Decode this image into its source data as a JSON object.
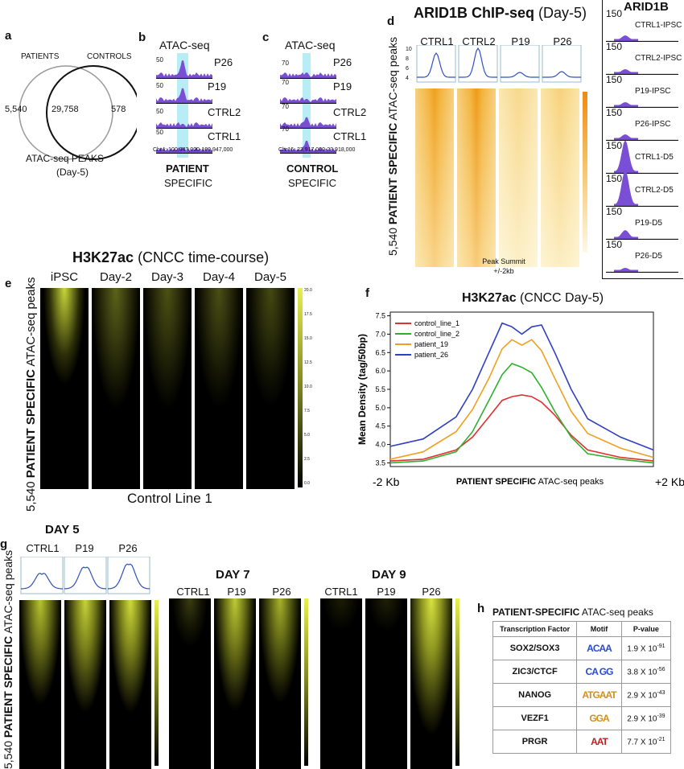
{
  "panels": {
    "a": "a",
    "b": "b",
    "c": "c",
    "d": "d",
    "e": "e",
    "f": "f",
    "g": "g",
    "h": "h"
  },
  "panel_a": {
    "left_label": "PATIENTS",
    "right_label": "CONTROLS",
    "left_only": "5,540",
    "overlap": "29,758",
    "right_only": "578",
    "caption_line1": "ATAC-seq PEAKS",
    "caption_line2": "(Day-5)"
  },
  "panel_b": {
    "title": "ATAC-seq",
    "tracks": [
      {
        "scale": "50",
        "name": "P26"
      },
      {
        "scale": "50",
        "name": "P19"
      },
      {
        "scale": "50",
        "name": "CTRL2"
      },
      {
        "scale": "50",
        "name": "CTRL1"
      }
    ],
    "coords": "Chr4: 100,943,000-100,947,000",
    "footer_bold": "PATIENT",
    "footer": "SPECIFIC"
  },
  "panel_c": {
    "title": "ATAC-seq",
    "tracks": [
      {
        "scale": "70",
        "name": "P26"
      },
      {
        "scale": "70",
        "name": "P19"
      },
      {
        "scale": "70",
        "name": "CTRL2"
      },
      {
        "scale": "70",
        "name": "CTRL1"
      }
    ],
    "coords": "Chr16: 23,917,000-23,918,000",
    "footer_bold": "CONTROL",
    "footer": "SPECIFIC"
  },
  "panel_d": {
    "title_bold": "ARID1B ChIP-seq",
    "title_rest": " (Day-5)",
    "columns": [
      "CTRL1",
      "CTRL2",
      "P19",
      "P26"
    ],
    "profile_ticks": [
      "10",
      "8",
      "6",
      "4"
    ],
    "ylabel_count": "5,540",
    "ylabel_bold": "PATIENT SPECIFIC",
    "ylabel_rest": " ATAC-seq peaks",
    "xlabel1": "Peak Summit",
    "xlabel2": "+/-2kb"
  },
  "panel_arid1b": {
    "title": "ARID1B",
    "tracks": [
      {
        "scale": "150",
        "name": "CTRL1-IPSC"
      },
      {
        "scale": "150",
        "name": "CTRL2-IPSC"
      },
      {
        "scale": "150",
        "name": "P19-IPSC"
      },
      {
        "scale": "150",
        "name": "P26-IPSC"
      },
      {
        "scale": "150",
        "name": "CTRL1-D5"
      },
      {
        "scale": "150",
        "name": "CTRL2-D5"
      },
      {
        "scale": "150",
        "name": "P19-D5"
      },
      {
        "scale": "150",
        "name": "P26-D5"
      }
    ]
  },
  "panel_e": {
    "title_bold": "H3K27ac",
    "title_rest": " (CNCC time-course)",
    "columns": [
      "iPSC",
      "Day-2",
      "Day-3",
      "Day-4",
      "Day-5"
    ],
    "ylabel_count": "5,540",
    "ylabel_bold": "PATIENT SPECIFIC",
    "ylabel_rest": " ATAC-seq peaks",
    "xlabel": "Control Line 1",
    "colorbar_ticks": [
      "20.0",
      "17.5",
      "15.0",
      "12.5",
      "10.0",
      "7.5",
      "5.0",
      "2.5",
      "0.0"
    ]
  },
  "chart_data": {
    "type": "line",
    "title": "H3K27ac (CNCC Day-5)",
    "title_bold": "H3K27ac",
    "title_rest": " (CNCC Day-5)",
    "ylabel": "Mean Density (tag/50bp)",
    "xlabel_bold": "PATIENT SPECIFIC",
    "xlabel_rest": " ATAC-seq peaks",
    "x_left": "-2 Kb",
    "x_right": "+2 Kb",
    "ylim": [
      3.4,
      7.6
    ],
    "yticks": [
      "3.5",
      "4.0",
      "4.5",
      "5.0",
      "5.5",
      "6.0",
      "6.5",
      "7.0",
      "7.5"
    ],
    "grid": false,
    "legend_position": "top-left",
    "x": [
      -2.0,
      -1.5,
      -1.0,
      -0.75,
      -0.5,
      -0.3,
      -0.15,
      0.0,
      0.15,
      0.3,
      0.5,
      0.75,
      1.0,
      1.5,
      2.0
    ],
    "series": [
      {
        "name": "control_line_1",
        "color": "#e03030",
        "values": [
          3.55,
          3.6,
          3.85,
          4.2,
          4.75,
          5.2,
          5.3,
          5.35,
          5.3,
          5.15,
          4.8,
          4.25,
          3.85,
          3.65,
          3.55
        ]
      },
      {
        "name": "control_line_2",
        "color": "#30b030",
        "values": [
          3.5,
          3.55,
          3.8,
          4.35,
          5.2,
          5.9,
          6.2,
          6.1,
          5.95,
          5.55,
          4.9,
          4.2,
          3.75,
          3.6,
          3.5
        ]
      },
      {
        "name": "patient_19",
        "color": "#f0a020",
        "values": [
          3.6,
          3.8,
          4.35,
          4.95,
          5.8,
          6.6,
          6.85,
          6.7,
          6.85,
          6.55,
          5.8,
          4.9,
          4.3,
          3.9,
          3.65
        ]
      },
      {
        "name": "patient_26",
        "color": "#3040c0",
        "values": [
          3.95,
          4.15,
          4.75,
          5.5,
          6.5,
          7.3,
          7.2,
          7.0,
          7.2,
          7.25,
          6.5,
          5.5,
          4.7,
          4.2,
          3.85
        ]
      }
    ]
  },
  "panel_g": {
    "day5_title": "DAY 5",
    "day7_title": "DAY 7",
    "day9_title": "DAY 9",
    "columns": [
      "CTRL1",
      "P19",
      "P26"
    ],
    "ylabel_count": "5,540",
    "ylabel_bold": "PATIENT SPECIFIC",
    "ylabel_rest": " ATAC-seq peaks"
  },
  "panel_h": {
    "title_bold": "PATIENT-SPECIFIC",
    "title_rest": " ATAC-seq peaks",
    "headers": [
      "Transcription Factor",
      "Motif",
      "P-value"
    ],
    "rows": [
      {
        "tf": "SOX2/SOX3",
        "motif": "ACAA",
        "pval": "1.9 X 10",
        "exp": "-91"
      },
      {
        "tf": "ZIC3/CTCF",
        "motif": "CA GG",
        "pval": "3.8 X 10",
        "exp": "-56"
      },
      {
        "tf": "NANOG",
        "motif": "ATGAAT",
        "pval": "2.9 X 10",
        "exp": "-43"
      },
      {
        "tf": "VEZF1",
        "motif": "GGA",
        "pval": "2.9 X 10",
        "exp": "-39"
      },
      {
        "tf": "PRGR",
        "motif": "AAT",
        "pval": "7.7 X 10",
        "exp": "-21"
      }
    ]
  },
  "colors": {
    "track_fill": "#7a4fd6",
    "highlight": "#a8e8f2",
    "heat_orange": "#f2a020",
    "heat_yellow": "#e8f050",
    "profile_line": "#3050c0"
  }
}
